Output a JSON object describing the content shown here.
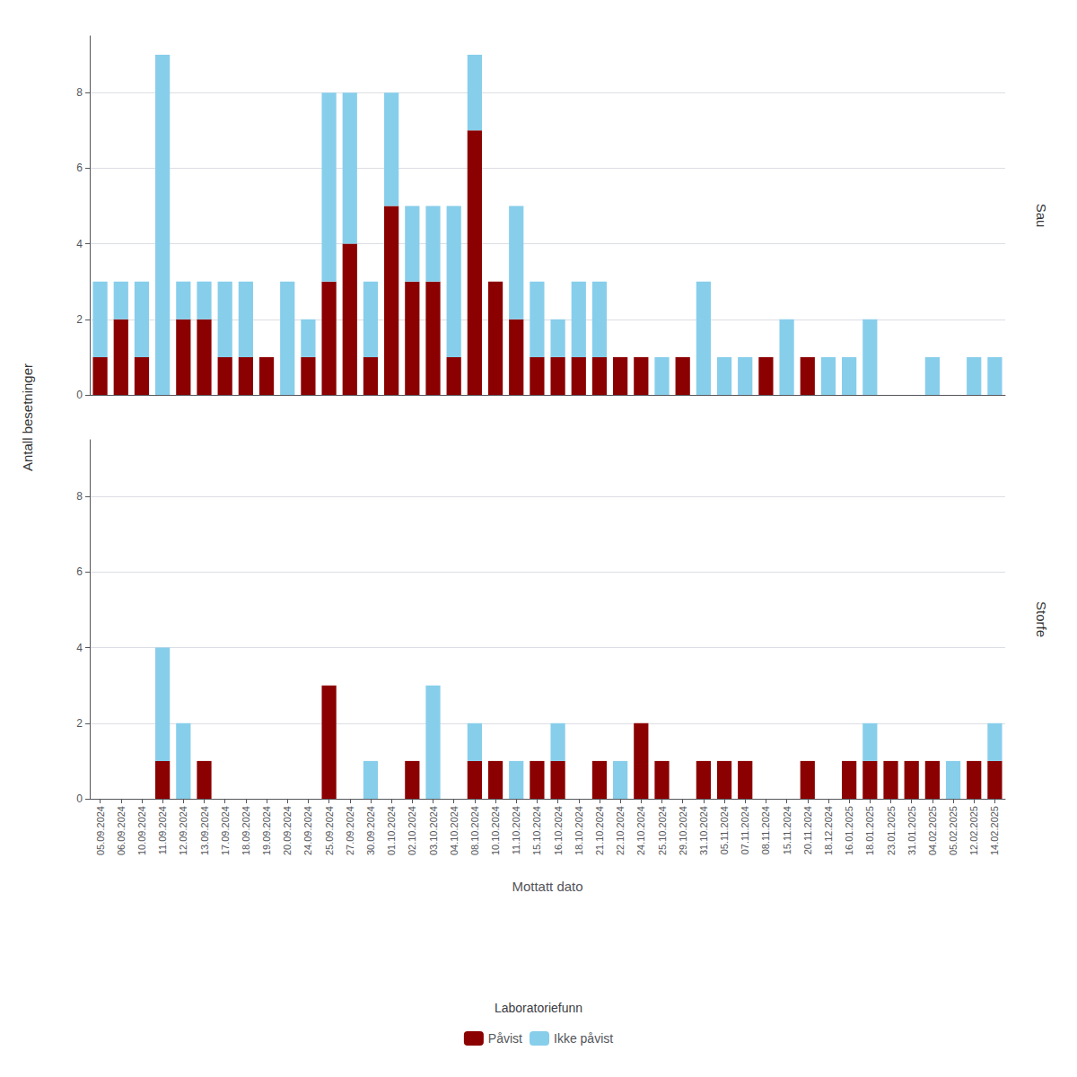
{
  "chart_data": {
    "type": "bar",
    "stacked": true,
    "grid": true,
    "legend": "bottom",
    "ylabel": "Antall besetninger",
    "xlabel": "Mottatt dato",
    "legend_title": "Laboratoriefunn",
    "ylim": [
      0,
      9.5
    ],
    "yticks": [
      0,
      2,
      4,
      6,
      8
    ],
    "categories": [
      "05.09.2024",
      "06.09.2024",
      "10.09.2024",
      "11.09.2024",
      "12.09.2024",
      "13.09.2024",
      "17.09.2024",
      "18.09.2024",
      "19.09.2024",
      "20.09.2024",
      "24.09.2024",
      "25.09.2024",
      "27.09.2024",
      "30.09.2024",
      "01.10.2024",
      "02.10.2024",
      "03.10.2024",
      "04.10.2024",
      "08.10.2024",
      "10.10.2024",
      "11.10.2024",
      "15.10.2024",
      "16.10.2024",
      "18.10.2024",
      "21.10.2024",
      "22.10.2024",
      "24.10.2024",
      "25.10.2024",
      "29.10.2024",
      "31.10.2024",
      "05.11.2024",
      "07.11.2024",
      "08.11.2024",
      "15.11.2024",
      "20.11.2024",
      "18.12.2024",
      "16.01.2025",
      "18.01.2025",
      "23.01.2025",
      "31.01.2025",
      "04.02.2025",
      "05.02.2025",
      "12.02.2025",
      "14.02.2025"
    ],
    "panels": [
      {
        "title": "Sau",
        "tick_labels": "y",
        "series": [
          {
            "name": "Påvist",
            "color": "#8B0000",
            "values": [
              1,
              2,
              1,
              0,
              2,
              2,
              1,
              1,
              1,
              0,
              1,
              3,
              4,
              1,
              5,
              3,
              3,
              1,
              7,
              3,
              2,
              1,
              1,
              1,
              1,
              1,
              1,
              0,
              1,
              0,
              0,
              0,
              1,
              0,
              1,
              0,
              0,
              0,
              0,
              0,
              0,
              0,
              0,
              0
            ]
          },
          {
            "name": "Ikke påvist",
            "color": "#87CEEB",
            "values": [
              2,
              1,
              2,
              9,
              1,
              1,
              2,
              2,
              0,
              3,
              1,
              5,
              4,
              2,
              3,
              2,
              2,
              4,
              2,
              0,
              3,
              2,
              1,
              2,
              2,
              0,
              0,
              1,
              0,
              3,
              1,
              1,
              0,
              2,
              0,
              1,
              1,
              2,
              0,
              0,
              1,
              0,
              1,
              1
            ]
          }
        ]
      },
      {
        "title": "Storfe",
        "series": [
          {
            "name": "Påvist",
            "color": "#8B0000",
            "values": [
              0,
              0,
              0,
              1,
              0,
              1,
              0,
              0,
              0,
              0,
              0,
              3,
              0,
              0,
              0,
              1,
              0,
              0,
              1,
              1,
              0,
              1,
              1,
              0,
              1,
              0,
              2,
              1,
              0,
              1,
              1,
              1,
              0,
              0,
              1,
              0,
              1,
              1,
              1,
              1,
              1,
              0,
              1,
              1
            ]
          },
          {
            "name": "Ikke påvist",
            "color": "#87CEEB",
            "values": [
              0,
              0,
              0,
              3,
              2,
              0,
              0,
              0,
              0,
              0,
              0,
              0,
              0,
              1,
              0,
              0,
              3,
              0,
              1,
              0,
              1,
              0,
              1,
              0,
              0,
              1,
              0,
              0,
              0,
              0,
              0,
              0,
              0,
              0,
              0,
              0,
              0,
              1,
              0,
              0,
              0,
              1,
              0,
              1
            ]
          }
        ]
      }
    ]
  }
}
